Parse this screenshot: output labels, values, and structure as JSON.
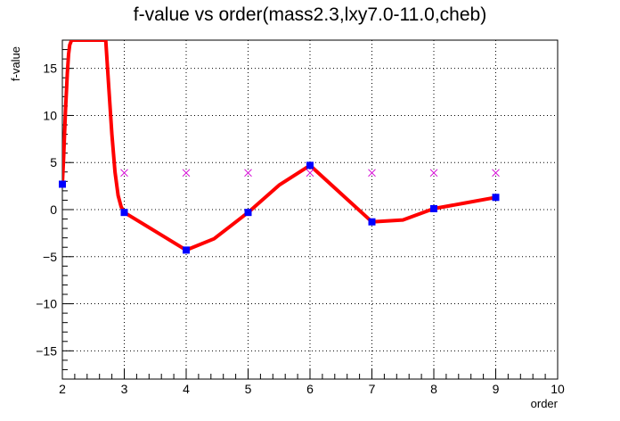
{
  "chart_data": {
    "type": "line",
    "title": "f-value vs order(mass2.3,lxy7.0-11.0,cheb)",
    "xlabel": "order",
    "ylabel": "f-value",
    "xlim": [
      2,
      10
    ],
    "ylim": [
      -18,
      18
    ],
    "x_ticks": [
      2,
      3,
      4,
      5,
      6,
      7,
      8,
      9,
      10
    ],
    "y_ticks": [
      -15,
      -10,
      -5,
      0,
      5,
      10,
      15
    ],
    "grid": true,
    "series": [
      {
        "kind": "curve",
        "color": "#ff0000",
        "x": [
          2.0,
          2.02,
          2.05,
          2.08,
          2.1,
          2.12,
          2.15,
          2.7,
          2.75,
          2.8,
          2.85,
          2.9,
          2.95,
          3.0,
          3.5,
          4.0,
          4.45,
          5.0,
          5.5,
          6.0,
          6.5,
          7.0,
          7.5,
          8.0,
          8.5,
          9.0
        ],
        "y": [
          2.7,
          5.5,
          10.5,
          14.5,
          16.5,
          17.5,
          18.0,
          18.0,
          13.0,
          8.0,
          4.0,
          1.5,
          0.3,
          -0.3,
          -2.3,
          -4.3,
          -3.1,
          -0.3,
          2.6,
          4.7,
          1.7,
          -1.3,
          -1.1,
          0.1,
          0.7,
          1.3
        ]
      },
      {
        "kind": "markers",
        "marker": "square",
        "color": "#0000ff",
        "x": [
          2,
          3,
          4,
          5,
          6,
          7,
          8,
          9
        ],
        "y": [
          2.7,
          -0.3,
          -4.3,
          -0.3,
          4.7,
          -1.3,
          0.1,
          1.3
        ]
      },
      {
        "kind": "markers",
        "marker": "x",
        "color": "#d400d4",
        "x": [
          3,
          4,
          5,
          6,
          7,
          8,
          9
        ],
        "y": [
          3.9,
          3.9,
          3.9,
          3.9,
          3.9,
          3.9,
          3.9
        ]
      }
    ]
  }
}
